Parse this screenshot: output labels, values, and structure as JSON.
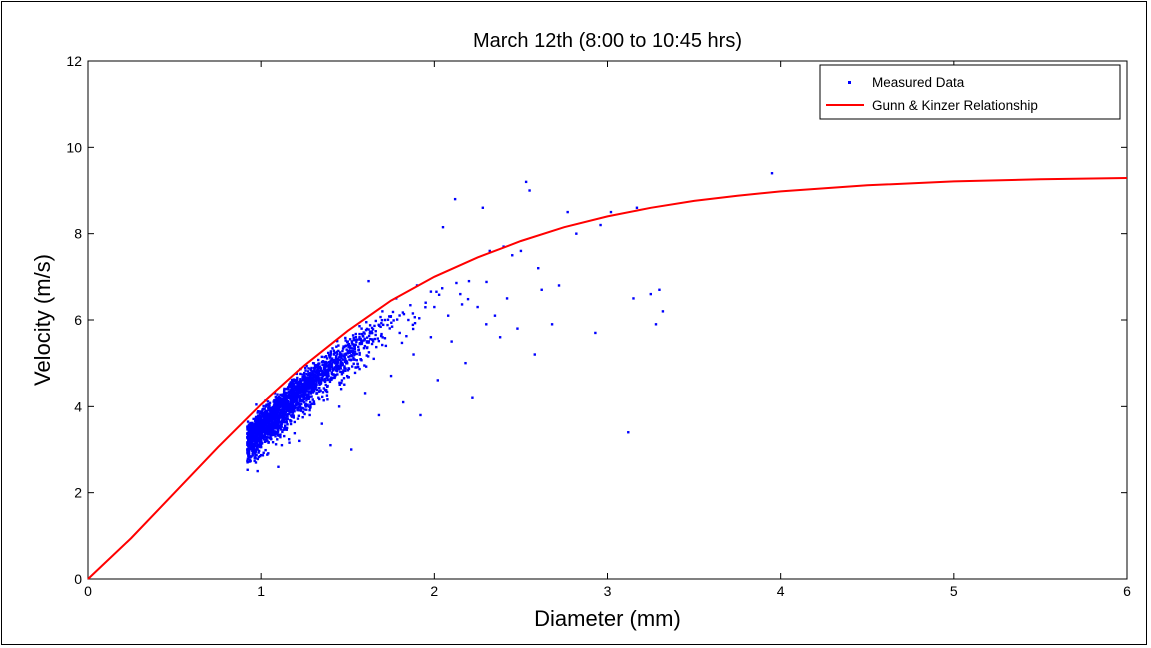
{
  "chart_data": {
    "type": "scatter",
    "title": "March 12th (8:00 to 10:45 hrs)",
    "xlabel": "Diameter (mm)",
    "ylabel": "Velocity (m/s)",
    "xlim": [
      0,
      6
    ],
    "ylim": [
      0,
      12
    ],
    "xticks": [
      "0",
      "1",
      "2",
      "3",
      "4",
      "5",
      "6"
    ],
    "yticks": [
      "0",
      "2",
      "4",
      "6",
      "8",
      "10",
      "12"
    ],
    "grid": false,
    "legend_position": "top-right",
    "series": [
      {
        "name": "Measured Data",
        "kind": "scatter",
        "color": "#0000ff",
        "points": [
          [
            0.92,
            3.0
          ],
          [
            0.95,
            3.4
          ],
          [
            0.97,
            2.7
          ],
          [
            0.98,
            2.5
          ],
          [
            1.0,
            3.6
          ],
          [
            1.02,
            3.3
          ],
          [
            1.05,
            3.9
          ],
          [
            1.08,
            4.3
          ],
          [
            1.1,
            2.6
          ],
          [
            1.12,
            3.1
          ],
          [
            1.15,
            3.5
          ],
          [
            1.18,
            4.0
          ],
          [
            1.2,
            4.6
          ],
          [
            1.22,
            3.2
          ],
          [
            1.25,
            4.4
          ],
          [
            1.28,
            3.8
          ],
          [
            1.3,
            5.0
          ],
          [
            1.33,
            4.2
          ],
          [
            1.35,
            3.6
          ],
          [
            1.38,
            4.8
          ],
          [
            1.4,
            3.1
          ],
          [
            1.42,
            5.2
          ],
          [
            1.45,
            4.0
          ],
          [
            1.48,
            4.5
          ],
          [
            1.5,
            5.5
          ],
          [
            1.52,
            3.0
          ],
          [
            1.55,
            4.9
          ],
          [
            1.58,
            5.8
          ],
          [
            1.6,
            4.3
          ],
          [
            1.62,
            6.9
          ],
          [
            1.65,
            5.1
          ],
          [
            1.68,
            3.8
          ],
          [
            1.7,
            6.2
          ],
          [
            1.72,
            5.4
          ],
          [
            1.75,
            4.7
          ],
          [
            1.78,
            6.5
          ],
          [
            1.8,
            5.7
          ],
          [
            1.82,
            4.1
          ],
          [
            1.85,
            6.0
          ],
          [
            1.88,
            5.2
          ],
          [
            1.9,
            6.8
          ],
          [
            1.92,
            3.8
          ],
          [
            1.95,
            6.4
          ],
          [
            1.98,
            5.6
          ],
          [
            2.0,
            6.3
          ],
          [
            2.02,
            4.6
          ],
          [
            2.05,
            8.15
          ],
          [
            2.08,
            6.1
          ],
          [
            2.1,
            5.5
          ],
          [
            2.12,
            8.8
          ],
          [
            2.15,
            6.6
          ],
          [
            2.18,
            5.0
          ],
          [
            2.2,
            6.9
          ],
          [
            2.22,
            4.2
          ],
          [
            2.25,
            6.3
          ],
          [
            2.28,
            8.6
          ],
          [
            2.3,
            5.9
          ],
          [
            2.32,
            7.6
          ],
          [
            2.35,
            6.1
          ],
          [
            2.38,
            5.6
          ],
          [
            2.4,
            7.7
          ],
          [
            2.42,
            6.5
          ],
          [
            2.45,
            7.5
          ],
          [
            2.48,
            5.8
          ],
          [
            2.5,
            7.6
          ],
          [
            2.53,
            9.2
          ],
          [
            2.55,
            9.0
          ],
          [
            2.58,
            5.2
          ],
          [
            2.6,
            7.2
          ],
          [
            2.62,
            6.7
          ],
          [
            2.68,
            5.9
          ],
          [
            2.72,
            6.8
          ],
          [
            2.77,
            8.5
          ],
          [
            2.82,
            8.0
          ],
          [
            2.93,
            5.7
          ],
          [
            2.96,
            8.2
          ],
          [
            3.02,
            8.5
          ],
          [
            3.12,
            3.4
          ],
          [
            3.15,
            6.5
          ],
          [
            3.17,
            8.6
          ],
          [
            3.25,
            6.6
          ],
          [
            3.28,
            5.9
          ],
          [
            3.3,
            6.7
          ],
          [
            3.32,
            6.2
          ],
          [
            3.95,
            9.4
          ]
        ]
      },
      {
        "name": "Gunn & Kinzer Relationship",
        "kind": "line",
        "color": "#ff0000",
        "points": [
          [
            0,
            0
          ],
          [
            0.25,
            0.95
          ],
          [
            0.5,
            2.0
          ],
          [
            0.75,
            3.05
          ],
          [
            1.0,
            4.05
          ],
          [
            1.25,
            4.95
          ],
          [
            1.5,
            5.75
          ],
          [
            1.75,
            6.45
          ],
          [
            2.0,
            7.0
          ],
          [
            2.25,
            7.45
          ],
          [
            2.5,
            7.83
          ],
          [
            2.75,
            8.15
          ],
          [
            3.0,
            8.4
          ],
          [
            3.25,
            8.6
          ],
          [
            3.5,
            8.76
          ],
          [
            3.75,
            8.88
          ],
          [
            4.0,
            8.98
          ],
          [
            4.5,
            9.12
          ],
          [
            5.0,
            9.21
          ],
          [
            5.5,
            9.26
          ],
          [
            6.0,
            9.29
          ]
        ]
      }
    ]
  }
}
